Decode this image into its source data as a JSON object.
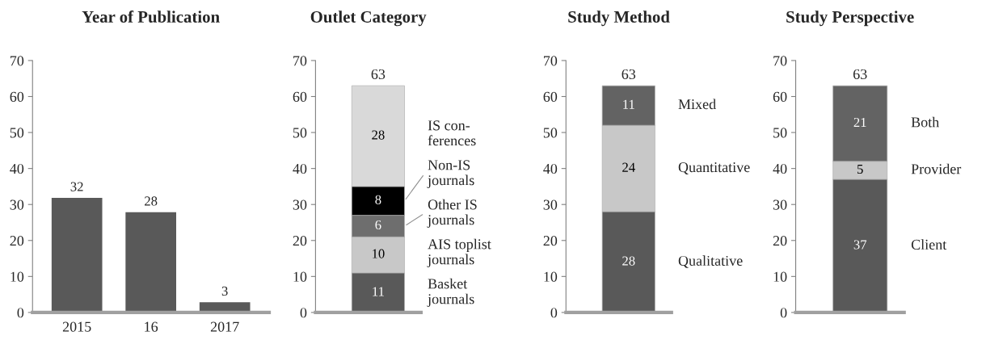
{
  "chart_data": [
    {
      "type": "bar",
      "title": "Year of Publication",
      "categories": [
        "2015",
        "16",
        "2017"
      ],
      "values": [
        32,
        28,
        3
      ],
      "color": "#595959",
      "ylim": [
        0,
        70
      ],
      "yticks": [
        0,
        10,
        20,
        30,
        40,
        50,
        60,
        70
      ],
      "data_labels": true
    },
    {
      "type": "bar",
      "title": "Outlet Category",
      "categories": [
        null
      ],
      "stacked": true,
      "data_labels": true,
      "totals": [
        "63"
      ],
      "ylim": [
        0,
        70
      ],
      "yticks": [
        0,
        10,
        20,
        30,
        40,
        50,
        60,
        70
      ],
      "series": [
        {
          "name": "Basket\njournals",
          "color": "#595959",
          "values": [
            11
          ]
        },
        {
          "name": "AIS toplist\njournals",
          "color": "#c8c8c8",
          "values": [
            10
          ]
        },
        {
          "name": "Other IS\njournals",
          "color": "#6e6e6e",
          "values": [
            6
          ]
        },
        {
          "name": "Non-IS\njournals",
          "color": "#000000",
          "values": [
            8
          ]
        },
        {
          "name": "IS con-\nferences",
          "color": "#d9d9d9",
          "values": [
            28
          ]
        }
      ]
    },
    {
      "type": "bar",
      "title": "Study Method",
      "categories": [
        null
      ],
      "stacked": true,
      "data_labels": true,
      "totals": [
        "63"
      ],
      "ylim": [
        0,
        70
      ],
      "yticks": [
        0,
        10,
        20,
        30,
        40,
        50,
        60,
        70
      ],
      "series": [
        {
          "name": "Qualitative",
          "color": "#595959",
          "values": [
            28
          ]
        },
        {
          "name": "Quantitative",
          "color": "#c8c8c8",
          "values": [
            24
          ]
        },
        {
          "name": "Mixed",
          "color": "#636363",
          "values": [
            11
          ]
        }
      ]
    },
    {
      "type": "bar",
      "title": "Study Perspective",
      "categories": [
        null
      ],
      "stacked": true,
      "data_labels": true,
      "totals": [
        "63"
      ],
      "ylim": [
        0,
        70
      ],
      "yticks": [
        0,
        10,
        20,
        30,
        40,
        50,
        60,
        70
      ],
      "series": [
        {
          "name": "Client",
          "color": "#595959",
          "values": [
            37
          ]
        },
        {
          "name": "Provider",
          "color": "#c8c8c8",
          "values": [
            5
          ]
        },
        {
          "name": "Both",
          "color": "#636363",
          "values": [
            21
          ]
        }
      ]
    }
  ]
}
